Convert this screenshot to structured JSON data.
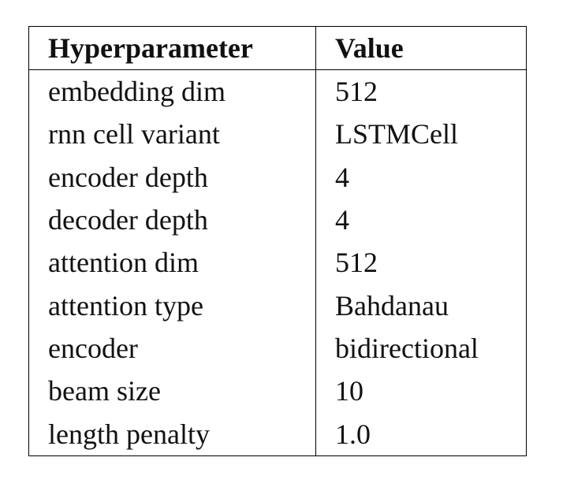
{
  "table": {
    "header": [
      "Hyperparameter",
      "Value"
    ],
    "rows": [
      [
        "embedding dim",
        "512"
      ],
      [
        "rnn cell variant",
        "LSTMCell"
      ],
      [
        "encoder depth",
        "4"
      ],
      [
        "decoder depth",
        "4"
      ],
      [
        "attention dim",
        "512"
      ],
      [
        "attention type",
        "Bahdanau"
      ],
      [
        "encoder",
        "bidirectional"
      ],
      [
        "beam size",
        "10"
      ],
      [
        "length penalty",
        "1.0"
      ]
    ]
  }
}
